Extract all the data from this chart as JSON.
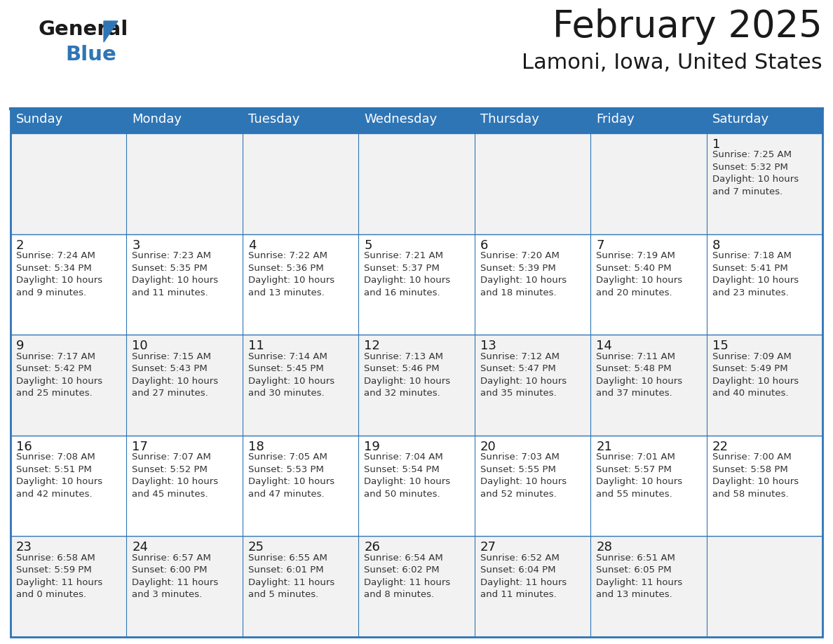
{
  "title": "February 2025",
  "subtitle": "Lamoni, Iowa, United States",
  "header_bg": "#2e75b6",
  "header_text_color": "#ffffff",
  "cell_bg_even": "#f2f2f2",
  "cell_bg_odd": "#ffffff",
  "day_headers": [
    "Sunday",
    "Monday",
    "Tuesday",
    "Wednesday",
    "Thursday",
    "Friday",
    "Saturday"
  ],
  "days": [
    {
      "day": 1,
      "col": 6,
      "row": 0,
      "sunrise": "7:25 AM",
      "sunset": "5:32 PM",
      "daylight_line1": "Daylight: 10 hours",
      "daylight_line2": "and 7 minutes."
    },
    {
      "day": 2,
      "col": 0,
      "row": 1,
      "sunrise": "7:24 AM",
      "sunset": "5:34 PM",
      "daylight_line1": "Daylight: 10 hours",
      "daylight_line2": "and 9 minutes."
    },
    {
      "day": 3,
      "col": 1,
      "row": 1,
      "sunrise": "7:23 AM",
      "sunset": "5:35 PM",
      "daylight_line1": "Daylight: 10 hours",
      "daylight_line2": "and 11 minutes."
    },
    {
      "day": 4,
      "col": 2,
      "row": 1,
      "sunrise": "7:22 AM",
      "sunset": "5:36 PM",
      "daylight_line1": "Daylight: 10 hours",
      "daylight_line2": "and 13 minutes."
    },
    {
      "day": 5,
      "col": 3,
      "row": 1,
      "sunrise": "7:21 AM",
      "sunset": "5:37 PM",
      "daylight_line1": "Daylight: 10 hours",
      "daylight_line2": "and 16 minutes."
    },
    {
      "day": 6,
      "col": 4,
      "row": 1,
      "sunrise": "7:20 AM",
      "sunset": "5:39 PM",
      "daylight_line1": "Daylight: 10 hours",
      "daylight_line2": "and 18 minutes."
    },
    {
      "day": 7,
      "col": 5,
      "row": 1,
      "sunrise": "7:19 AM",
      "sunset": "5:40 PM",
      "daylight_line1": "Daylight: 10 hours",
      "daylight_line2": "and 20 minutes."
    },
    {
      "day": 8,
      "col": 6,
      "row": 1,
      "sunrise": "7:18 AM",
      "sunset": "5:41 PM",
      "daylight_line1": "Daylight: 10 hours",
      "daylight_line2": "and 23 minutes."
    },
    {
      "day": 9,
      "col": 0,
      "row": 2,
      "sunrise": "7:17 AM",
      "sunset": "5:42 PM",
      "daylight_line1": "Daylight: 10 hours",
      "daylight_line2": "and 25 minutes."
    },
    {
      "day": 10,
      "col": 1,
      "row": 2,
      "sunrise": "7:15 AM",
      "sunset": "5:43 PM",
      "daylight_line1": "Daylight: 10 hours",
      "daylight_line2": "and 27 minutes."
    },
    {
      "day": 11,
      "col": 2,
      "row": 2,
      "sunrise": "7:14 AM",
      "sunset": "5:45 PM",
      "daylight_line1": "Daylight: 10 hours",
      "daylight_line2": "and 30 minutes."
    },
    {
      "day": 12,
      "col": 3,
      "row": 2,
      "sunrise": "7:13 AM",
      "sunset": "5:46 PM",
      "daylight_line1": "Daylight: 10 hours",
      "daylight_line2": "and 32 minutes."
    },
    {
      "day": 13,
      "col": 4,
      "row": 2,
      "sunrise": "7:12 AM",
      "sunset": "5:47 PM",
      "daylight_line1": "Daylight: 10 hours",
      "daylight_line2": "and 35 minutes."
    },
    {
      "day": 14,
      "col": 5,
      "row": 2,
      "sunrise": "7:11 AM",
      "sunset": "5:48 PM",
      "daylight_line1": "Daylight: 10 hours",
      "daylight_line2": "and 37 minutes."
    },
    {
      "day": 15,
      "col": 6,
      "row": 2,
      "sunrise": "7:09 AM",
      "sunset": "5:49 PM",
      "daylight_line1": "Daylight: 10 hours",
      "daylight_line2": "and 40 minutes."
    },
    {
      "day": 16,
      "col": 0,
      "row": 3,
      "sunrise": "7:08 AM",
      "sunset": "5:51 PM",
      "daylight_line1": "Daylight: 10 hours",
      "daylight_line2": "and 42 minutes."
    },
    {
      "day": 17,
      "col": 1,
      "row": 3,
      "sunrise": "7:07 AM",
      "sunset": "5:52 PM",
      "daylight_line1": "Daylight: 10 hours",
      "daylight_line2": "and 45 minutes."
    },
    {
      "day": 18,
      "col": 2,
      "row": 3,
      "sunrise": "7:05 AM",
      "sunset": "5:53 PM",
      "daylight_line1": "Daylight: 10 hours",
      "daylight_line2": "and 47 minutes."
    },
    {
      "day": 19,
      "col": 3,
      "row": 3,
      "sunrise": "7:04 AM",
      "sunset": "5:54 PM",
      "daylight_line1": "Daylight: 10 hours",
      "daylight_line2": "and 50 minutes."
    },
    {
      "day": 20,
      "col": 4,
      "row": 3,
      "sunrise": "7:03 AM",
      "sunset": "5:55 PM",
      "daylight_line1": "Daylight: 10 hours",
      "daylight_line2": "and 52 minutes."
    },
    {
      "day": 21,
      "col": 5,
      "row": 3,
      "sunrise": "7:01 AM",
      "sunset": "5:57 PM",
      "daylight_line1": "Daylight: 10 hours",
      "daylight_line2": "and 55 minutes."
    },
    {
      "day": 22,
      "col": 6,
      "row": 3,
      "sunrise": "7:00 AM",
      "sunset": "5:58 PM",
      "daylight_line1": "Daylight: 10 hours",
      "daylight_line2": "and 58 minutes."
    },
    {
      "day": 23,
      "col": 0,
      "row": 4,
      "sunrise": "6:58 AM",
      "sunset": "5:59 PM",
      "daylight_line1": "Daylight: 11 hours",
      "daylight_line2": "and 0 minutes."
    },
    {
      "day": 24,
      "col": 1,
      "row": 4,
      "sunrise": "6:57 AM",
      "sunset": "6:00 PM",
      "daylight_line1": "Daylight: 11 hours",
      "daylight_line2": "and 3 minutes."
    },
    {
      "day": 25,
      "col": 2,
      "row": 4,
      "sunrise": "6:55 AM",
      "sunset": "6:01 PM",
      "daylight_line1": "Daylight: 11 hours",
      "daylight_line2": "and 5 minutes."
    },
    {
      "day": 26,
      "col": 3,
      "row": 4,
      "sunrise": "6:54 AM",
      "sunset": "6:02 PM",
      "daylight_line1": "Daylight: 11 hours",
      "daylight_line2": "and 8 minutes."
    },
    {
      "day": 27,
      "col": 4,
      "row": 4,
      "sunrise": "6:52 AM",
      "sunset": "6:04 PM",
      "daylight_line1": "Daylight: 11 hours",
      "daylight_line2": "and 11 minutes."
    },
    {
      "day": 28,
      "col": 5,
      "row": 4,
      "sunrise": "6:51 AM",
      "sunset": "6:05 PM",
      "daylight_line1": "Daylight: 11 hours",
      "daylight_line2": "and 13 minutes."
    }
  ],
  "num_rows": 5,
  "num_cols": 7,
  "title_fontsize": 38,
  "subtitle_fontsize": 22,
  "header_fontsize": 13,
  "day_num_fontsize": 13,
  "cell_text_fontsize": 9.5,
  "border_color": "#2e75b6",
  "line_color": "#2e75b6",
  "logo_general_color": "#1a1a1a",
  "logo_blue_color": "#2e75b6",
  "logo_triangle_color": "#2e75b6"
}
